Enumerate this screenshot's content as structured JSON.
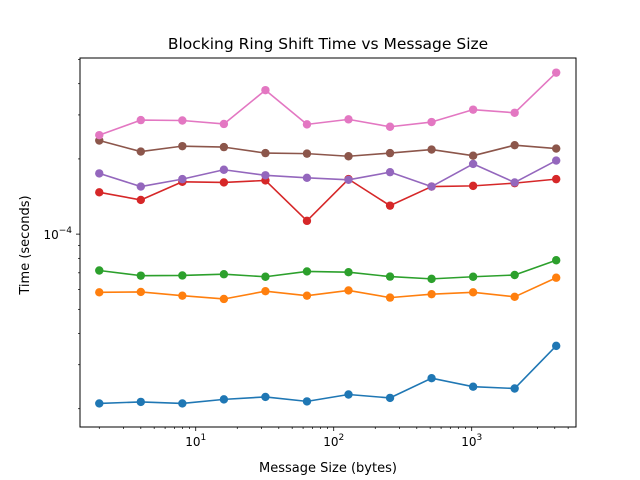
{
  "chart_data": {
    "type": "line",
    "title": "Blocking Ring Shift Time vs Message Size",
    "xlabel": "Message Size (bytes)",
    "ylabel": "Time (seconds)",
    "xscale": "log",
    "yscale": "log",
    "xlim": [
      1.45,
      5700
    ],
    "ylim": [
      1.69e-05,
      0.000507
    ],
    "grid": false,
    "legend": "none",
    "marker": "circle",
    "x": [
      2,
      4,
      8,
      16,
      32,
      64,
      128,
      256,
      512,
      1024,
      2048,
      4096
    ],
    "x_ticks": [
      {
        "value": 10,
        "base": "10",
        "exp": "1"
      },
      {
        "value": 100,
        "base": "10",
        "exp": "2"
      },
      {
        "value": 1000,
        "base": "10",
        "exp": "3"
      }
    ],
    "y_ticks": [
      {
        "value": 0.0001,
        "base": "10",
        "exp": "−4"
      }
    ],
    "series": [
      {
        "color": "#1f77b4",
        "values": [
          2.1e-05,
          2.13e-05,
          2.1e-05,
          2.18e-05,
          2.23e-05,
          2.14e-05,
          2.28e-05,
          2.21e-05,
          2.65e-05,
          2.45e-05,
          2.41e-05,
          3.57e-05
        ]
      },
      {
        "color": "#ff7f0e",
        "values": [
          5.85e-05,
          5.87e-05,
          5.67e-05,
          5.5e-05,
          5.91e-05,
          5.67e-05,
          5.95e-05,
          5.57e-05,
          5.75e-05,
          5.85e-05,
          5.61e-05,
          6.69e-05
        ]
      },
      {
        "color": "#2ca02c",
        "values": [
          7.15e-05,
          6.82e-05,
          6.83e-05,
          6.91e-05,
          6.75e-05,
          7.09e-05,
          7.04e-05,
          6.76e-05,
          6.62e-05,
          6.75e-05,
          6.86e-05,
          7.86e-05
        ]
      },
      {
        "color": "#d62728",
        "values": [
          0.000147,
          0.000137,
          0.000162,
          0.000161,
          0.000164,
          0.000113,
          0.000166,
          0.00013,
          0.000155,
          0.000156,
          0.00016,
          0.000166
        ]
      },
      {
        "color": "#9467bd",
        "values": [
          0.000175,
          0.000155,
          0.000166,
          0.000181,
          0.000172,
          0.000168,
          0.000165,
          0.000177,
          0.000155,
          0.000191,
          0.000161,
          0.000197
        ]
      },
      {
        "color": "#8c564b",
        "values": [
          0.000237,
          0.000214,
          0.000225,
          0.000223,
          0.000211,
          0.00021,
          0.000205,
          0.000211,
          0.000218,
          0.000206,
          0.000227,
          0.00022
        ]
      },
      {
        "color": "#e377c2",
        "values": [
          0.000249,
          0.000286,
          0.000285,
          0.000276,
          0.000377,
          0.000275,
          0.000288,
          0.000269,
          0.000281,
          0.000315,
          0.000306,
          0.000443
        ]
      }
    ]
  }
}
